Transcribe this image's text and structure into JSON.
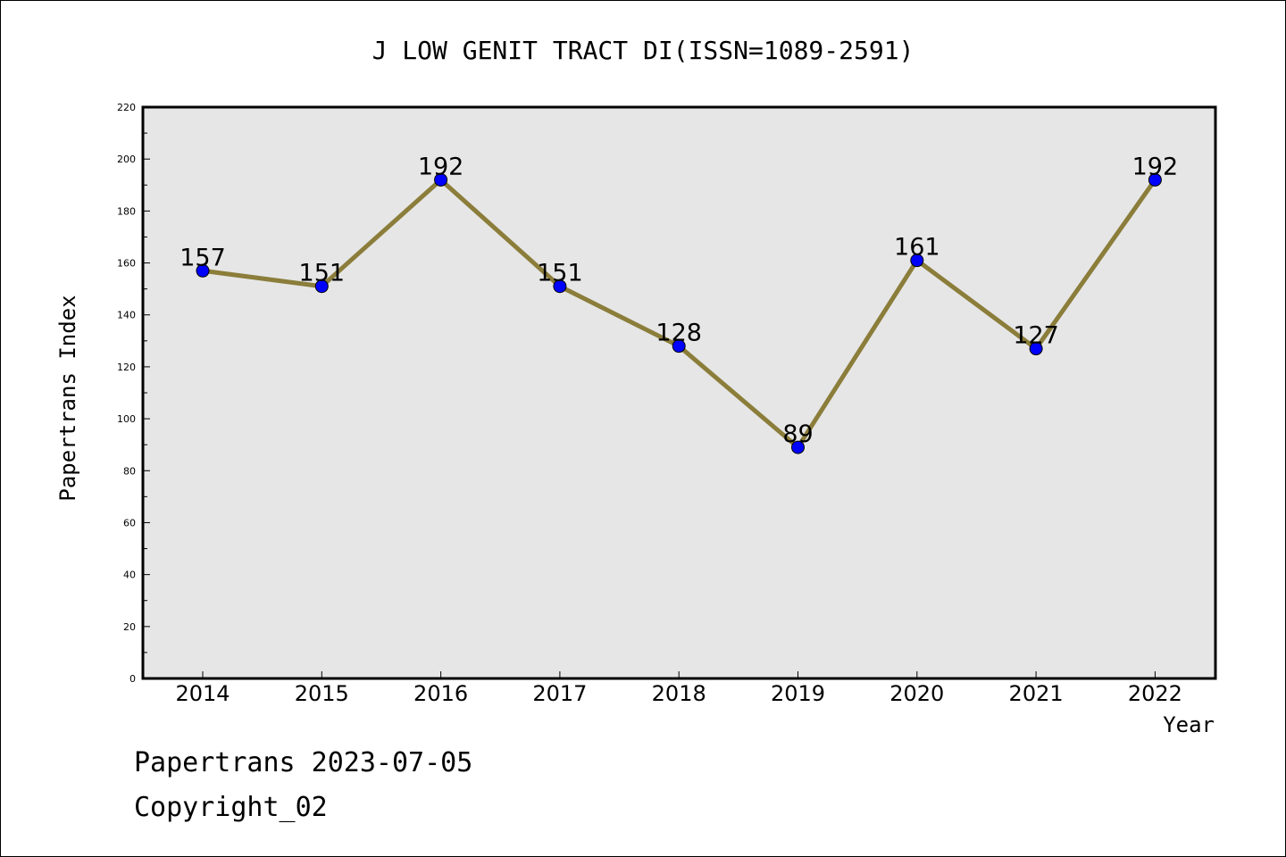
{
  "chart_data": {
    "type": "line",
    "title": "J LOW GENIT TRACT DI(ISSN=1089-2591)",
    "xlabel": "Year",
    "ylabel": "Papertrans Index",
    "categories": [
      "2014",
      "2015",
      "2016",
      "2017",
      "2018",
      "2019",
      "2020",
      "2021",
      "2022"
    ],
    "series": [
      {
        "values": [
          157,
          151,
          192,
          151,
          128,
          89,
          161,
          127,
          192
        ],
        "data_labels": [
          "157",
          "151",
          "192",
          "151",
          "128",
          "89",
          "161",
          "127",
          "192"
        ]
      }
    ],
    "ylim": [
      0,
      220
    ],
    "yticks": [
      0,
      20,
      40,
      60,
      80,
      100,
      120,
      140,
      160,
      180,
      200,
      220
    ],
    "grid": false,
    "legend": "none",
    "colors": {
      "line": "#8B7D3A",
      "marker": "#0000FF",
      "plot_background": "#E6E6E6"
    }
  },
  "footer": {
    "line1": "Papertrans 2023-07-05",
    "line2": "Copyright_02"
  }
}
